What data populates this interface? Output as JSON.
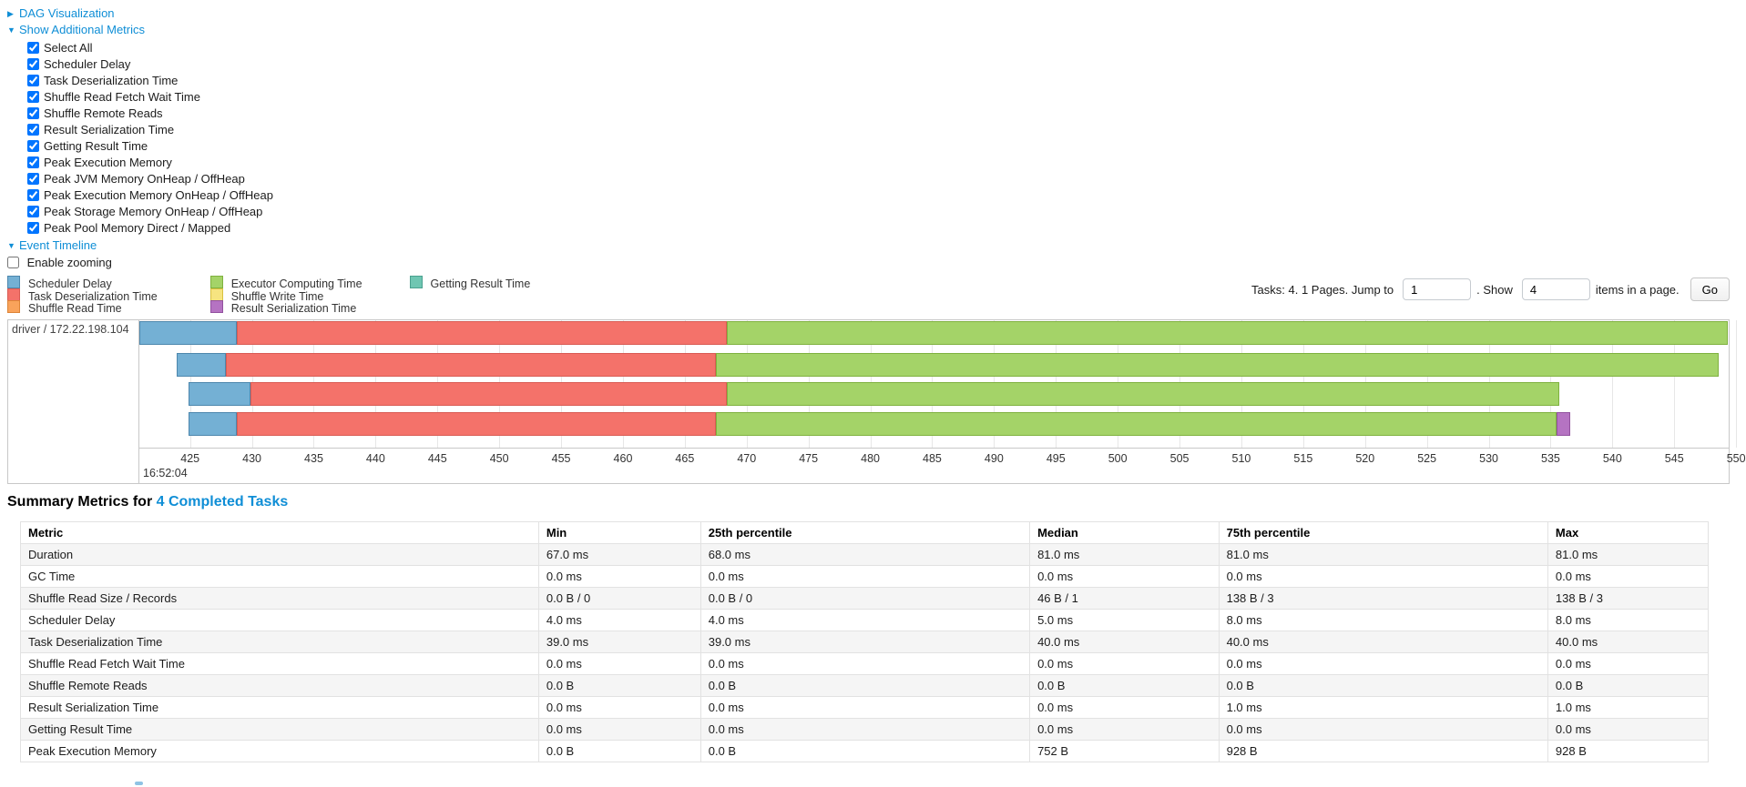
{
  "colors": {
    "link": "#0f8ed6",
    "scheduler_delay": {
      "fill": "#74b0d4",
      "border": "#4d87ad"
    },
    "task_deserialization": {
      "fill": "#f4726a",
      "border": "#d95b53"
    },
    "shuffle_read": {
      "fill": "#f9a35b",
      "border": "#dd8436"
    },
    "executor_computing": {
      "fill": "#a4d368",
      "border": "#7fb13f"
    },
    "shuffle_write": {
      "fill": "#f6e480",
      "border": "#d9c13f"
    },
    "result_serialization": {
      "fill": "#b573c2",
      "border": "#92519f"
    },
    "getting_result": {
      "fill": "#6fc6b2",
      "border": "#4aa18f"
    }
  },
  "toggles": {
    "dag": {
      "label": "DAG Visualization",
      "state": "collapsed"
    },
    "metrics": {
      "label": "Show Additional Metrics",
      "state": "expanded"
    },
    "timeline": {
      "label": "Event Timeline",
      "state": "expanded"
    }
  },
  "metrics_panel": {
    "items": [
      {
        "label": "Select All",
        "checked": true
      },
      {
        "label": "Scheduler Delay",
        "checked": true
      },
      {
        "label": "Task Deserialization Time",
        "checked": true
      },
      {
        "label": "Shuffle Read Fetch Wait Time",
        "checked": true
      },
      {
        "label": "Shuffle Remote Reads",
        "checked": true
      },
      {
        "label": "Result Serialization Time",
        "checked": true
      },
      {
        "label": "Getting Result Time",
        "checked": true
      },
      {
        "label": "Peak Execution Memory",
        "checked": true
      },
      {
        "label": "Peak JVM Memory OnHeap / OffHeap",
        "checked": true
      },
      {
        "label": "Peak Execution Memory OnHeap / OffHeap",
        "checked": true
      },
      {
        "label": "Peak Storage Memory OnHeap / OffHeap",
        "checked": true
      },
      {
        "label": "Peak Pool Memory Direct / Mapped",
        "checked": true
      }
    ]
  },
  "enable_zooming": {
    "label": "Enable zooming",
    "checked": false
  },
  "legend": {
    "columns": [
      [
        {
          "label": "Scheduler Delay",
          "color": "scheduler_delay"
        },
        {
          "label": "Task Deserialization Time",
          "color": "task_deserialization"
        },
        {
          "label": "Shuffle Read Time",
          "color": "shuffle_read"
        }
      ],
      [
        {
          "label": "Executor Computing Time",
          "color": "executor_computing"
        },
        {
          "label": "Shuffle Write Time",
          "color": "shuffle_write"
        },
        {
          "label": "Result Serialization Time",
          "color": "result_serialization"
        }
      ],
      [
        {
          "label": "Getting Result Time",
          "color": "getting_result"
        }
      ]
    ]
  },
  "pagination": {
    "summary_text": "Tasks: 4. 1 Pages. Jump to",
    "jump_value": "1",
    "middle_text": ". Show",
    "page_size_value": "4",
    "suffix_text": "items in a page.",
    "go_label": "Go"
  },
  "timeline": {
    "executor_label": "driver / 172.22.198.104",
    "axis": {
      "min": 420.9,
      "max": 549.4,
      "tick_start": 425,
      "tick_step": 5,
      "tick_end": 550,
      "major_label": "16:52:04"
    },
    "rows": [
      {
        "segments": [
          {
            "color": "scheduler_delay",
            "start": 420.9,
            "end": 428.8
          },
          {
            "color": "task_deserialization",
            "start": 428.8,
            "end": 468.4
          },
          {
            "color": "executor_computing",
            "start": 468.4,
            "end": 549.3
          }
        ]
      },
      {
        "segments": [
          {
            "color": "scheduler_delay",
            "start": 423.9,
            "end": 427.9
          },
          {
            "color": "task_deserialization",
            "start": 427.9,
            "end": 467.5
          },
          {
            "color": "executor_computing",
            "start": 467.5,
            "end": 548.6
          }
        ]
      },
      {
        "segments": [
          {
            "color": "scheduler_delay",
            "start": 424.9,
            "end": 429.9
          },
          {
            "color": "task_deserialization",
            "start": 429.9,
            "end": 468.4
          },
          {
            "color": "executor_computing",
            "start": 468.4,
            "end": 535.7
          }
        ]
      },
      {
        "segments": [
          {
            "color": "scheduler_delay",
            "start": 424.9,
            "end": 428.8
          },
          {
            "color": "task_deserialization",
            "start": 428.8,
            "end": 467.5
          },
          {
            "color": "executor_computing",
            "start": 467.5,
            "end": 535.5
          },
          {
            "color": "result_serialization",
            "start": 535.5,
            "end": 536.6
          }
        ]
      }
    ]
  },
  "summary": {
    "heading_prefix": "Summary Metrics for ",
    "heading_link": "4 Completed Tasks",
    "columns": [
      "Metric",
      "Min",
      "25th percentile",
      "Median",
      "75th percentile",
      "Max"
    ],
    "rows": [
      [
        "Duration",
        "67.0 ms",
        "68.0 ms",
        "81.0 ms",
        "81.0 ms",
        "81.0 ms"
      ],
      [
        "GC Time",
        "0.0 ms",
        "0.0 ms",
        "0.0 ms",
        "0.0 ms",
        "0.0 ms"
      ],
      [
        "Shuffle Read Size / Records",
        "0.0 B / 0",
        "0.0 B / 0",
        "46 B / 1",
        "138 B / 3",
        "138 B / 3"
      ],
      [
        "Scheduler Delay",
        "4.0 ms",
        "4.0 ms",
        "5.0 ms",
        "8.0 ms",
        "8.0 ms"
      ],
      [
        "Task Deserialization Time",
        "39.0 ms",
        "39.0 ms",
        "40.0 ms",
        "40.0 ms",
        "40.0 ms"
      ],
      [
        "Shuffle Read Fetch Wait Time",
        "0.0 ms",
        "0.0 ms",
        "0.0 ms",
        "0.0 ms",
        "0.0 ms"
      ],
      [
        "Shuffle Remote Reads",
        "0.0 B",
        "0.0 B",
        "0.0 B",
        "0.0 B",
        "0.0 B"
      ],
      [
        "Result Serialization Time",
        "0.0 ms",
        "0.0 ms",
        "0.0 ms",
        "1.0 ms",
        "1.0 ms"
      ],
      [
        "Getting Result Time",
        "0.0 ms",
        "0.0 ms",
        "0.0 ms",
        "0.0 ms",
        "0.0 ms"
      ],
      [
        "Peak Execution Memory",
        "0.0 B",
        "0.0 B",
        "752 B",
        "928 B",
        "928 B"
      ]
    ]
  }
}
